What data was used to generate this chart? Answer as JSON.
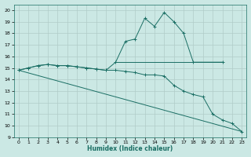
{
  "xlabel": "Humidex (Indice chaleur)",
  "ylabel": "",
  "bg_color": "#cbe8e4",
  "grid_color": "#b0ccc8",
  "line_color": "#1a6e64",
  "xlim": [
    -0.5,
    23.5
  ],
  "ylim": [
    9,
    20.5
  ],
  "yticks": [
    9,
    10,
    11,
    12,
    13,
    14,
    15,
    16,
    17,
    18,
    19,
    20
  ],
  "xticks": [
    0,
    1,
    2,
    3,
    4,
    5,
    6,
    7,
    8,
    9,
    10,
    11,
    12,
    13,
    14,
    15,
    16,
    17,
    18,
    19,
    20,
    21,
    22,
    23
  ],
  "line1_x": [
    0,
    1,
    2,
    3,
    4,
    5,
    6,
    7,
    8,
    9,
    10,
    11,
    12,
    13,
    14,
    15,
    16,
    17,
    18,
    21
  ],
  "line1_y": [
    14.8,
    15.0,
    15.2,
    15.3,
    15.2,
    15.2,
    15.1,
    15.0,
    14.9,
    14.8,
    15.5,
    17.3,
    17.5,
    19.3,
    18.6,
    19.8,
    19.0,
    18.0,
    15.5,
    15.5
  ],
  "line2_x": [
    0,
    1,
    2,
    3,
    4,
    5,
    6,
    7,
    8,
    9,
    10,
    11,
    12,
    13,
    14,
    15,
    16,
    17,
    18,
    19,
    20,
    21,
    22,
    23
  ],
  "line2_y": [
    14.8,
    15.0,
    15.2,
    15.3,
    15.2,
    15.2,
    15.1,
    15.0,
    14.9,
    14.8,
    14.8,
    14.7,
    14.6,
    14.4,
    14.4,
    14.3,
    13.5,
    13.0,
    12.7,
    12.5,
    11.0,
    10.5,
    10.2,
    9.5
  ],
  "line3_x": [
    0,
    23
  ],
  "line3_y": [
    14.8,
    9.5
  ],
  "line4_x": [
    10,
    21
  ],
  "line4_y": [
    15.5,
    15.5
  ]
}
